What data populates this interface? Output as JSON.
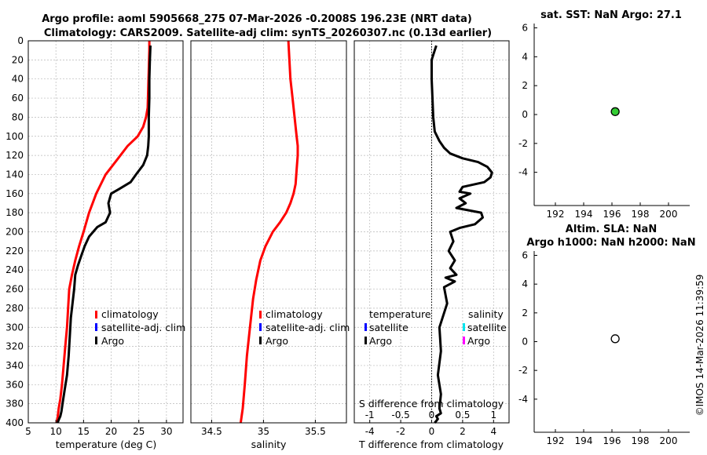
{
  "figure": {
    "title_line1": "Argo profile: aoml 5905668_275 07-Mar-2026 -0.2008S 196.23E (NRT data)",
    "title_line2": "Climatology: CARS2009. Satellite-adj clim: synTS_20260307.nc (0.13d earlier)",
    "footer": "©IMOS 14-Mar-2026 11:39:59"
  },
  "legends": {
    "temp": [
      "climatology",
      "satellite-adj. clim",
      "Argo"
    ],
    "sal": [
      "climatology",
      "satellite-adj. clim",
      "Argo"
    ],
    "diff_left_title": "temperature",
    "diff_right_title": "salinity",
    "diff_left": [
      "satellite",
      "Argo"
    ],
    "diff_right": [
      "satellite",
      "Argo"
    ]
  },
  "chart_data": [
    {
      "type": "line",
      "id": "temperature",
      "xlabel": "temperature (deg C)",
      "ylabel": "",
      "xlim": [
        5,
        33
      ],
      "ylim": [
        400,
        0
      ],
      "xticks": [
        5,
        10,
        15,
        20,
        25,
        30
      ],
      "yticks": [
        0,
        20,
        40,
        60,
        80,
        100,
        120,
        140,
        160,
        180,
        200,
        220,
        240,
        260,
        280,
        300,
        320,
        340,
        360,
        380,
        400
      ],
      "grid": true,
      "series": [
        {
          "name": "climatology",
          "color": "#ff0000",
          "x": [
            26.9,
            26.9,
            26.8,
            26.7,
            26.6,
            26.3,
            25.8,
            24.8,
            23.0,
            21.0,
            19.0,
            17.3,
            16.0,
            15.0,
            14.2,
            13.5,
            12.9,
            12.4,
            12.2,
            12.0,
            11.7,
            11.4,
            11.1,
            10.8,
            10.5,
            10.3,
            10.1
          ],
          "y": [
            0,
            10,
            30,
            50,
            70,
            80,
            90,
            100,
            110,
            125,
            140,
            160,
            180,
            200,
            215,
            230,
            245,
            260,
            280,
            300,
            320,
            340,
            360,
            375,
            385,
            395,
            400
          ]
        },
        {
          "name": "Argo",
          "color": "#000000",
          "x": [
            27.1,
            27.0,
            26.9,
            26.9,
            26.8,
            26.8,
            26.7,
            26.5,
            25.8,
            24.5,
            23.5,
            21.5,
            20.0,
            19.5,
            19.8,
            19.0,
            17.5,
            16.0,
            15.2,
            14.6,
            14.0,
            13.5,
            13.3,
            13.0,
            12.7,
            12.5,
            12.3,
            12.0,
            11.6,
            11.2,
            11.0,
            10.8,
            10.5,
            10.3
          ],
          "y": [
            5,
            20,
            40,
            60,
            80,
            100,
            110,
            120,
            130,
            140,
            148,
            155,
            160,
            170,
            180,
            190,
            195,
            205,
            215,
            225,
            235,
            245,
            260,
            275,
            290,
            310,
            330,
            350,
            365,
            380,
            388,
            393,
            397,
            400
          ]
        }
      ],
      "legend_items": [
        "climatology",
        "satellite-adj. clim",
        "Argo"
      ]
    },
    {
      "type": "line",
      "id": "salinity",
      "xlabel": "salinity",
      "ylabel": "",
      "xlim": [
        34.3,
        35.8
      ],
      "ylim": [
        400,
        0
      ],
      "xticks": [
        34.5,
        35,
        35.5
      ],
      "grid": true,
      "series": [
        {
          "name": "climatology",
          "color": "#ff0000",
          "x": [
            35.24,
            35.25,
            35.26,
            35.28,
            35.3,
            35.32,
            35.33,
            35.33,
            35.32,
            35.31,
            35.29,
            35.26,
            35.22,
            35.16,
            35.09,
            35.02,
            34.97,
            34.93,
            34.9,
            34.87,
            34.84,
            34.82,
            34.8,
            34.78
          ],
          "y": [
            0,
            20,
            40,
            60,
            80,
            100,
            110,
            120,
            135,
            150,
            160,
            170,
            180,
            190,
            200,
            215,
            230,
            250,
            270,
            300,
            330,
            360,
            385,
            400
          ]
        }
      ],
      "legend_items": [
        "climatology",
        "satellite-adj. clim",
        "Argo"
      ]
    },
    {
      "type": "line",
      "id": "difference",
      "xlabel": "T difference from climatology",
      "xlabel_top": "S difference from climatology",
      "ylim": [
        400,
        0
      ],
      "xlim": [
        -5,
        5
      ],
      "xticks": [
        -4,
        -2,
        0,
        2,
        4
      ],
      "xticks_top": [
        "-1",
        "-0.5",
        "0",
        "0.5",
        "1"
      ],
      "grid": true,
      "series": [
        {
          "name": "Argo",
          "color": "#000000",
          "x": [
            0.3,
            0.2,
            0.0,
            0.0,
            0.05,
            0.1,
            0.2,
            0.5,
            0.8,
            1.2,
            2.0,
            3.0,
            3.6,
            3.9,
            3.8,
            3.4,
            2.0,
            1.8,
            2.5,
            1.8,
            2.2,
            1.6,
            3.2,
            3.3,
            2.8,
            1.8,
            1.2,
            1.4,
            1.1,
            1.5,
            1.2,
            1.6,
            0.9,
            1.5,
            0.8,
            1.0,
            0.5,
            0.6,
            0.4,
            0.6,
            0.5,
            0.6,
            0.3,
            0.4,
            0.3,
            0.2
          ],
          "y": [
            5,
            10,
            20,
            40,
            60,
            80,
            95,
            105,
            112,
            118,
            123,
            127,
            132,
            138,
            143,
            148,
            153,
            158,
            160,
            165,
            170,
            175,
            180,
            185,
            192,
            196,
            200,
            210,
            220,
            230,
            238,
            245,
            248,
            252,
            258,
            275,
            300,
            325,
            350,
            370,
            385,
            390,
            393,
            396,
            398,
            400
          ]
        }
      ]
    },
    {
      "type": "scatter",
      "id": "sst",
      "title": "sat. SST: NaN Argo: 27.1",
      "xlim": [
        190.5,
        201.5
      ],
      "ylim": [
        -6.3,
        6.3
      ],
      "xticks": [
        192,
        194,
        196,
        198,
        200
      ],
      "yticks": [
        -4,
        -2,
        0,
        2,
        4,
        6
      ],
      "points": [
        {
          "x": 196.23,
          "y": 0.2008,
          "color": "#33cc33"
        }
      ]
    },
    {
      "type": "scatter",
      "id": "sla",
      "title": "Altim. SLA: NaN",
      "subtitle": "Argo h1000: NaN h2000: NaN",
      "xlim": [
        190.5,
        201.5
      ],
      "ylim": [
        -6.3,
        6.3
      ],
      "xticks": [
        192,
        194,
        196,
        198,
        200
      ],
      "yticks": [
        -4,
        -2,
        0,
        2,
        4,
        6
      ],
      "points": [
        {
          "x": 196.23,
          "y": 0.2008,
          "color": "#ffffff"
        }
      ]
    }
  ]
}
